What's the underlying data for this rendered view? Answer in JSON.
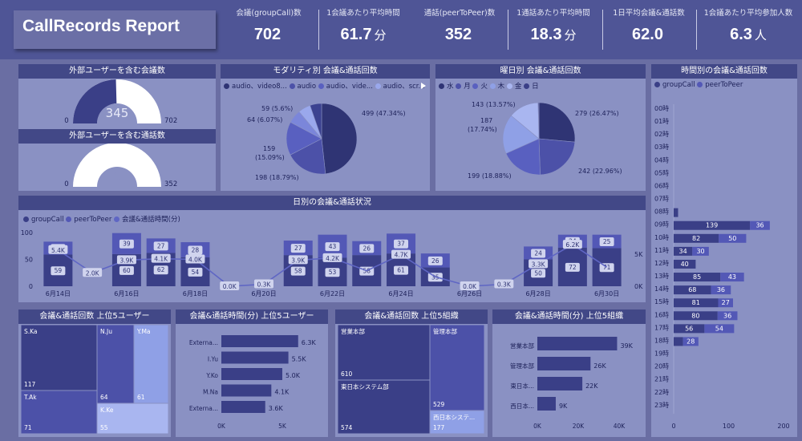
{
  "header": {
    "title": "CallRecords Report",
    "kpis": [
      {
        "label": "会議(groupCall)数",
        "value": "702",
        "unit": ""
      },
      {
        "label": "1会議あたり平均時間",
        "value": "61.7",
        "unit": "分"
      },
      {
        "label": "通話(peerToPeer)数",
        "value": "352",
        "unit": ""
      },
      {
        "label": "1通話あたり平均時間",
        "value": "18.3",
        "unit": "分"
      },
      {
        "label": "1日平均会議&通話数",
        "value": "62.0",
        "unit": ""
      },
      {
        "label": "1会議あたり平均参加人数",
        "value": "6.3",
        "unit": "人"
      }
    ]
  },
  "gauges": [
    {
      "title": "外部ユーザーを含む会議数",
      "value": "345",
      "min": "0",
      "max": "702",
      "fraction": 0.4915
    },
    {
      "title": "外部ユーザーを含む通話数",
      "value": "0",
      "min": "0",
      "max": "352",
      "fraction": 0
    }
  ],
  "colors": {
    "dark": "#3a3f87",
    "mid": "#5358b6",
    "light": "#8fa0e6",
    "lighter": "#a9b6f0",
    "topbar": "#4f5596",
    "panel": "#8a91c3"
  },
  "modality": {
    "title": "モダリティ別 会議&通話回数",
    "legend": [
      "audio、video8...",
      "audio",
      "audio、vide...",
      "audio、scr..."
    ],
    "labels": [
      "499 (47.34%)",
      "198 (18.79%)",
      "159\n(15.09%)",
      "64 (6.07%)",
      "59 (5.6%)"
    ],
    "slices": [
      499,
      198,
      159,
      64,
      59,
      55
    ],
    "slice_colors": [
      "#2f3474",
      "#4c51a8",
      "#5960c0",
      "#7b86da",
      "#9aa8ec",
      "#3c4290"
    ]
  },
  "weekday": {
    "title": "曜日別 会議&通話回数",
    "legend": [
      "水",
      "月",
      "火",
      "木",
      "金",
      "日"
    ],
    "labels": [
      "279 (26.47%)",
      "242 (22.96%)",
      "199 (18.88%)",
      "187\n(17.74%)",
      "143 (13.57%)"
    ],
    "slices": [
      279,
      242,
      199,
      187,
      143,
      4
    ],
    "slice_colors": [
      "#2f3474",
      "#4c51a8",
      "#5960c0",
      "#8fa0e6",
      "#a9b6f0",
      "#3a3f87"
    ]
  },
  "hourly": {
    "title": "時間別の会議&通話回数",
    "legend": [
      "groupCall",
      "peerToPeer"
    ],
    "hours": [
      "00時",
      "01時",
      "02時",
      "03時",
      "04時",
      "05時",
      "06時",
      "07時",
      "08時",
      "09時",
      "10時",
      "11時",
      "12時",
      "13時",
      "14時",
      "15時",
      "16時",
      "17時",
      "18時",
      "19時",
      "20時",
      "21時",
      "22時",
      "23時"
    ],
    "group": [
      0,
      0,
      0,
      0,
      0,
      0,
      0,
      0,
      8,
      139,
      82,
      34,
      40,
      85,
      68,
      81,
      80,
      56,
      17,
      0,
      0,
      0,
      0,
      0
    ],
    "p2p": [
      0,
      0,
      0,
      0,
      0,
      0,
      0,
      0,
      0,
      36,
      50,
      30,
      0,
      43,
      36,
      27,
      36,
      54,
      28,
      0,
      0,
      0,
      0,
      0
    ],
    "group_labels": [
      "",
      "",
      "",
      "",
      "",
      "",
      "",
      "",
      "",
      "139",
      "82",
      "34",
      "40",
      "85",
      "68",
      "81",
      "80",
      "56",
      "",
      "",
      "",
      "",
      "",
      ""
    ],
    "p2p_labels": [
      "",
      "",
      "",
      "",
      "",
      "",
      "",
      "",
      "",
      "36",
      "50",
      "30",
      "",
      "43",
      "36",
      "27",
      "36",
      "54",
      "28",
      "",
      "",
      "",
      "",
      ""
    ],
    "axis_ticks": [
      "0",
      "100",
      "200"
    ]
  },
  "daily": {
    "title": "日別の会議&通話状況",
    "legend": [
      "groupCall",
      "peerToPeer",
      "会議&通話時間(分)"
    ],
    "y_ticks_left": [
      "100",
      "50",
      "0"
    ],
    "y_ticks_right": [
      "5K",
      "0K"
    ],
    "x_labels": [
      "6月14日",
      "6月16日",
      "6月18日",
      "6月20日",
      "6月22日",
      "6月24日",
      "6月26日",
      "6月28日",
      "6月30日"
    ],
    "days": [
      {
        "g": 59,
        "p": 24,
        "t": "5.4K"
      },
      {
        "g": 0,
        "p": 0,
        "t": "2.0K"
      },
      {
        "g": 60,
        "p": 39,
        "t": "3.9K"
      },
      {
        "g": 62,
        "p": 27,
        "t": "4.1K"
      },
      {
        "g": 54,
        "p": 28,
        "t": "4.0K"
      },
      {
        "g": 0,
        "p": 0,
        "t": "0.0K"
      },
      {
        "g": 0,
        "p": 0,
        "t": "0.3K"
      },
      {
        "g": 58,
        "p": 27,
        "t": "3.9K"
      },
      {
        "g": 53,
        "p": 43,
        "t": "4.2K"
      },
      {
        "g": 58,
        "p": 26,
        "t": ""
      },
      {
        "g": 61,
        "p": 37,
        "t": "4.7K"
      },
      {
        "g": 35,
        "p": 26,
        "t": ""
      },
      {
        "g": 0,
        "p": 0,
        "t": "0.0K"
      },
      {
        "g": 0,
        "p": 0,
        "t": "0.3K"
      },
      {
        "g": 50,
        "p": 24,
        "t": "3.3K"
      },
      {
        "g": 72,
        "p": 24,
        "t": "6.2K"
      },
      {
        "g": 71,
        "p": 25,
        "t": ""
      }
    ]
  },
  "top_users_count": {
    "title": "会議&通話回数 上位5ユーザー",
    "tiles": [
      {
        "name": "S.Ka",
        "value": "117"
      },
      {
        "name": "T.Ak",
        "value": "71"
      },
      {
        "name": "N.Ju",
        "value": "64"
      },
      {
        "name": "Y.Ma",
        "value": "61"
      },
      {
        "name": "K.Ke",
        "value": "55"
      }
    ]
  },
  "top_users_time": {
    "title": "会議&通話時間(分) 上位5ユーザー",
    "rows": [
      {
        "name": "Externa...",
        "value": 6.3,
        "label": "6.3K"
      },
      {
        "name": "I.Yu",
        "value": 5.5,
        "label": "5.5K"
      },
      {
        "name": "Y.Ko",
        "value": 5.0,
        "label": "5.0K"
      },
      {
        "name": "M.Na",
        "value": 4.1,
        "label": "4.1K"
      },
      {
        "name": "Externa...",
        "value": 3.6,
        "label": "3.6K"
      }
    ],
    "axis": [
      "0K",
      "5K"
    ]
  },
  "top_orgs_count": {
    "title": "会議&通話回数 上位5組織",
    "tiles": [
      {
        "name": "営業本部",
        "value": "610"
      },
      {
        "name": "管理本部",
        "value": "529"
      },
      {
        "name": "東日本システム部",
        "value": "574"
      },
      {
        "name": "西日本システ...",
        "value": "177"
      }
    ]
  },
  "top_orgs_time": {
    "title": "会議&通話時間(分) 上位5組織",
    "rows": [
      {
        "name": "営業本部",
        "value": 39,
        "label": "39K"
      },
      {
        "name": "管理本部",
        "value": 26,
        "label": "26K"
      },
      {
        "name": "東日本...",
        "value": 22,
        "label": "22K"
      },
      {
        "name": "西日本...",
        "value": 9,
        "label": "9K"
      }
    ],
    "axis": [
      "0K",
      "20K",
      "40K"
    ]
  }
}
